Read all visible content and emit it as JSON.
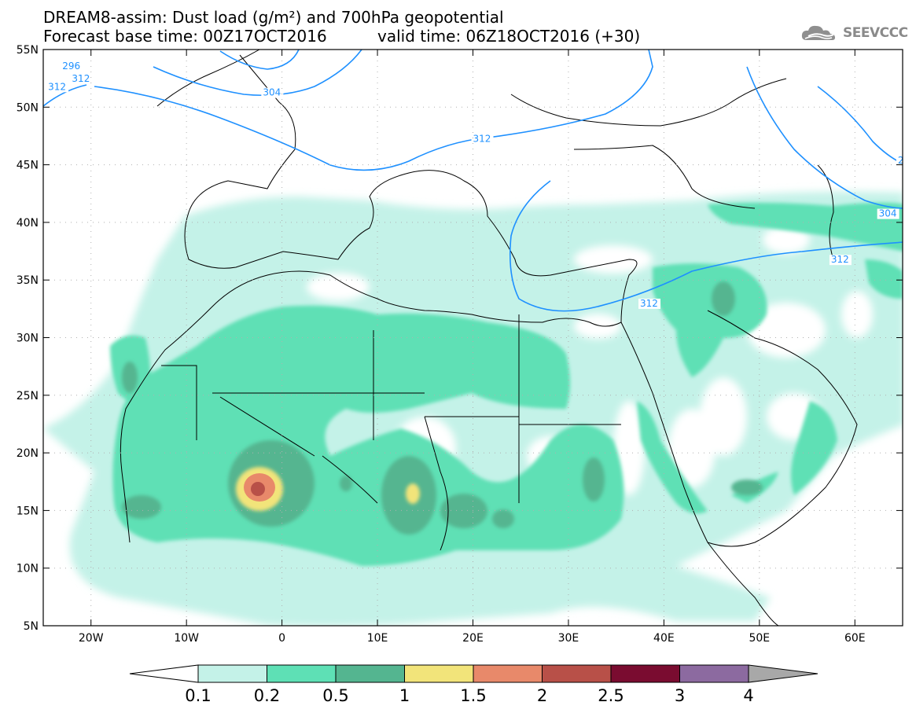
{
  "header": {
    "title_line1": "DREAM8-assim: Dust load (g/m²) and 700hPa geopotential",
    "title_line2": "Forecast base time: 00Z17OCT2016",
    "valid_time": "valid time: 06Z18OCT2016 (+30)",
    "logo_text": "SEEVCCC",
    "logo_icon": "cloud-logo-icon"
  },
  "map": {
    "lon_labels": [
      "20W",
      "10W",
      "0",
      "10E",
      "20E",
      "30E",
      "40E",
      "50E",
      "60E"
    ],
    "lat_labels": [
      "55N",
      "50N",
      "45N",
      "40N",
      "35N",
      "30N",
      "25N",
      "20N",
      "15N",
      "10N",
      "5N"
    ],
    "lon_range": [
      -25,
      65
    ],
    "lat_range": [
      5,
      55
    ],
    "contour_labels": [
      {
        "text": "296",
        "lon": -23,
        "lat": 53.3
      },
      {
        "text": "312",
        "lon": -24.5,
        "lat": 51.5
      },
      {
        "text": "312",
        "lon": -22,
        "lat": 52.2
      },
      {
        "text": "304",
        "lon": -2,
        "lat": 51
      },
      {
        "text": "312",
        "lon": 20,
        "lat": 47
      },
      {
        "text": "312",
        "lon": 37.5,
        "lat": 32.7
      },
      {
        "text": "304",
        "lon": 62.5,
        "lat": 40.5
      },
      {
        "text": "312",
        "lon": 57.5,
        "lat": 36.5
      },
      {
        "text": "2",
        "lon": 64.5,
        "lat": 45.1
      }
    ],
    "colors": {
      "contour": "#1e90ff",
      "coast": "#000000"
    }
  },
  "colorbar": {
    "labels": [
      "0.1",
      "0.2",
      "0.5",
      "1",
      "1.5",
      "2",
      "2.5",
      "3",
      "4"
    ],
    "colors": [
      "#c4f2e8",
      "#5ee0b5",
      "#54b590",
      "#f2e47a",
      "#e8896a",
      "#b85048",
      "#7a0c30",
      "#8c6aa0",
      "#a8a8a8"
    ],
    "under_color": "#ffffff"
  }
}
